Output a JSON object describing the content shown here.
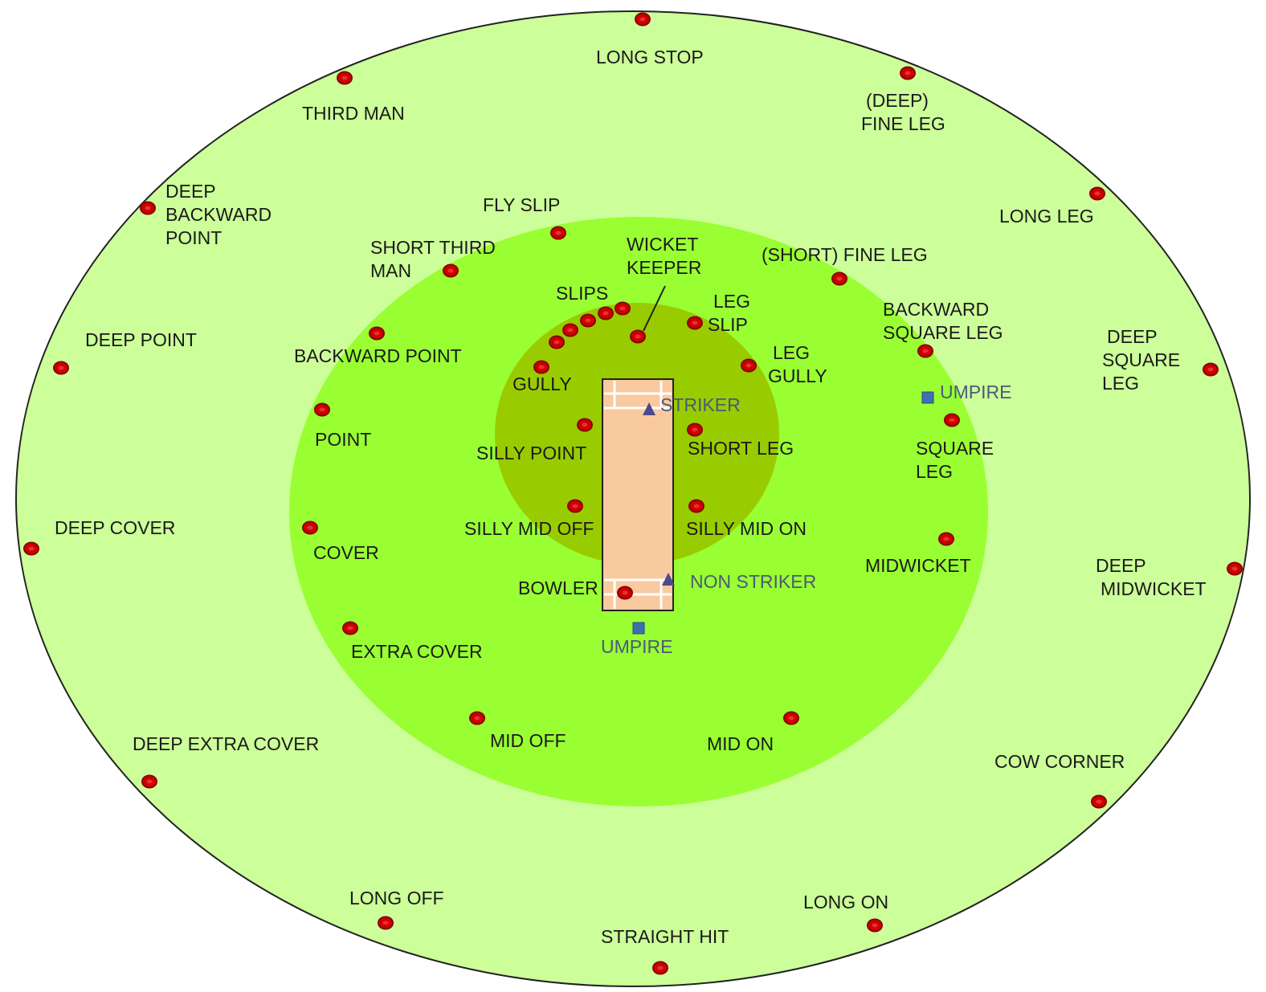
{
  "labels": [
    [
      "LONG STOP"
    ],
    [
      "THIRD  MAN"
    ],
    [
      "(DEEP)",
      "FINE LEG"
    ],
    [
      "DEEP",
      "BACKWARD",
      "POINT"
    ],
    [
      "FLY SLIP"
    ],
    [
      "LONG LEG"
    ],
    [
      "SHORT THIRD",
      "MAN"
    ],
    [
      "WICKET",
      "KEEPER"
    ],
    [
      "(SHORT)  FINE LEG"
    ],
    [
      "SLIPS"
    ],
    [
      "LEG",
      "SLIP"
    ],
    [
      "BACKWARD",
      "SQUARE LEG"
    ],
    [
      "DEEP",
      "SQUARE",
      "LEG"
    ],
    [
      "DEEP POINT"
    ],
    [
      "BACKWARD POINT"
    ],
    [
      "LEG",
      "GULLY"
    ],
    [
      "GULLY"
    ],
    [
      "UMPIRE"
    ],
    [
      "STRIKER"
    ],
    [
      "POINT"
    ],
    [
      "SILLY POINT"
    ],
    [
      "SHORT LEG"
    ],
    [
      "SQUARE",
      "LEG"
    ],
    [
      "DEEP COVER"
    ],
    [
      "SILLY MID OFF"
    ],
    [
      "SILLY MID ON"
    ],
    [
      "COVER"
    ],
    [
      "MIDWICKET"
    ],
    [
      "DEEP",
      "MIDWICKET"
    ],
    [
      "NON STRIKER"
    ],
    [
      "BOWLER"
    ],
    [
      "UMPIRE"
    ],
    [
      "EXTRA  COVER"
    ],
    [
      "MID OFF"
    ],
    [
      "MID ON"
    ],
    [
      "DEEP EXTRA  COVER"
    ],
    [
      "COW CORNER"
    ],
    [
      "LONG OFF"
    ],
    [
      "LONG ON"
    ],
    [
      "STRAIGHT  HIT"
    ]
  ]
}
